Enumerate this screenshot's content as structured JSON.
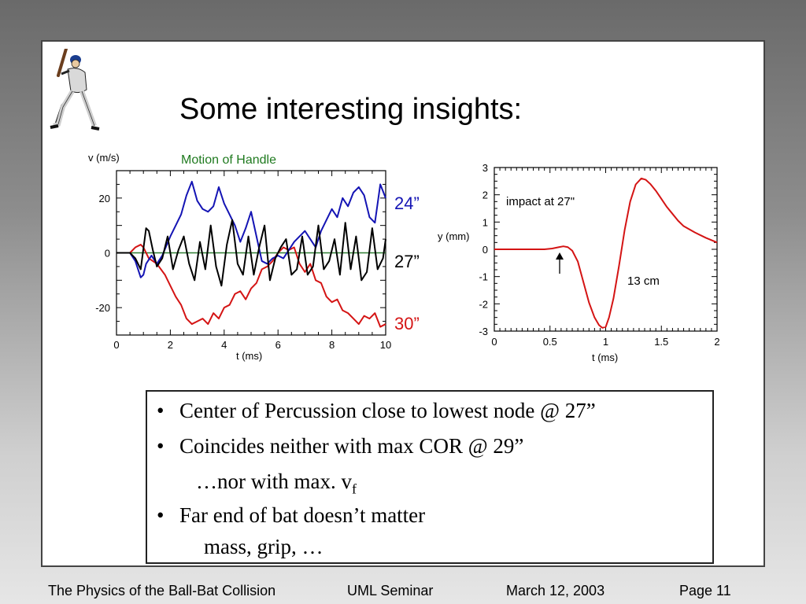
{
  "slide": {
    "title": "Some interesting insights:",
    "bullets": [
      {
        "text": "Center of Percussion close to lowest node @ 27”"
      },
      {
        "text": "Coincides neither with max COR @ 29”",
        "sub_text": "…nor with max. v",
        "sub_subscript": "f"
      },
      {
        "text": "Far end of bat doesn’t matter",
        "sub_text": "mass, grip, …"
      }
    ],
    "bullet_char": "•"
  },
  "footer": {
    "title": "The Physics of the Ball-Bat Collision",
    "event": "UML Seminar",
    "date": "March 12, 2003",
    "page": "Page 11"
  },
  "chart_data": [
    {
      "type": "line",
      "title": "Motion of Handle",
      "ylabel": "v (m/s)",
      "xlabel": "t (ms)",
      "xlim": [
        0,
        10
      ],
      "ylim": [
        -30,
        30
      ],
      "xticks": [
        "0",
        "2",
        "4",
        "6",
        "8",
        "10"
      ],
      "yticks": [
        "20",
        "0",
        "-20"
      ],
      "colors": {
        "title": "#1f7a1f",
        "zero_line": "#2e7d32"
      },
      "series": [
        {
          "name": "24”",
          "color": "#1414b4",
          "x": [
            0,
            0.5,
            0.7,
            0.9,
            1.0,
            1.1,
            1.3,
            1.5,
            1.7,
            2.0,
            2.2,
            2.4,
            2.6,
            2.8,
            3.0,
            3.2,
            3.4,
            3.6,
            3.8,
            4.0,
            4.2,
            4.4,
            4.6,
            4.8,
            5.0,
            5.2,
            5.4,
            5.6,
            5.8,
            6.0,
            6.2,
            6.4,
            6.6,
            6.8,
            7.0,
            7.2,
            7.4,
            7.6,
            7.8,
            8.0,
            8.2,
            8.4,
            8.6,
            8.8,
            9.0,
            9.2,
            9.4,
            9.6,
            9.8,
            10.0
          ],
          "y": [
            0,
            0,
            -3,
            -9,
            -8,
            -4,
            -1,
            -4,
            -1,
            6,
            10,
            14,
            21,
            26,
            19,
            16,
            15,
            17,
            24,
            18,
            14,
            10,
            4,
            9,
            15,
            6,
            -3,
            -4,
            -2,
            -1,
            -2,
            1,
            4,
            6,
            8,
            5,
            2,
            8,
            12,
            16,
            13,
            20,
            17,
            22,
            24,
            21,
            13,
            11,
            25,
            20
          ]
        },
        {
          "name": "27”",
          "color": "#000000",
          "x": [
            0,
            0.5,
            0.7,
            0.9,
            1.1,
            1.2,
            1.35,
            1.5,
            1.7,
            1.9,
            2.1,
            2.3,
            2.5,
            2.7,
            2.9,
            3.1,
            3.3,
            3.5,
            3.7,
            3.9,
            4.1,
            4.3,
            4.5,
            4.7,
            4.9,
            5.1,
            5.3,
            5.5,
            5.7,
            5.9,
            6.1,
            6.3,
            6.5,
            6.7,
            6.9,
            7.1,
            7.3,
            7.5,
            7.7,
            7.9,
            8.1,
            8.3,
            8.5,
            8.7,
            8.9,
            9.1,
            9.3,
            9.5,
            9.7,
            9.9,
            10.0
          ],
          "y": [
            0,
            0,
            -2,
            -6,
            9,
            8,
            1,
            -5,
            -2,
            6,
            -6,
            1,
            6,
            -4,
            -10,
            4,
            -6,
            10,
            -5,
            -12,
            3,
            12,
            -4,
            -8,
            6,
            -8,
            2,
            10,
            -10,
            -2,
            2,
            5,
            -8,
            -6,
            6,
            -8,
            -5,
            10,
            -6,
            -3,
            5,
            -8,
            11,
            -6,
            6,
            -10,
            -7,
            9,
            -6,
            -2,
            5
          ]
        },
        {
          "name": "30”",
          "color": "#d41414",
          "x": [
            0,
            0.5,
            0.7,
            0.9,
            1.0,
            1.2,
            1.5,
            1.8,
            2.0,
            2.2,
            2.4,
            2.6,
            2.8,
            3.0,
            3.2,
            3.4,
            3.6,
            3.8,
            4.0,
            4.2,
            4.4,
            4.6,
            4.8,
            5.0,
            5.2,
            5.4,
            5.6,
            5.8,
            6.0,
            6.2,
            6.4,
            6.6,
            6.8,
            7.0,
            7.2,
            7.4,
            7.6,
            7.8,
            8.0,
            8.2,
            8.4,
            8.6,
            8.8,
            9.0,
            9.2,
            9.4,
            9.6,
            9.8,
            10.0
          ],
          "y": [
            0,
            0,
            2,
            3,
            2,
            -2,
            -4,
            -8,
            -12,
            -16,
            -19,
            -24,
            -26,
            -25,
            -24,
            -26,
            -22,
            -24,
            -20,
            -19,
            -15,
            -14,
            -17,
            -13,
            -11,
            -6,
            -5,
            -3,
            0,
            2,
            1,
            2,
            -4,
            -7,
            -4,
            -10,
            -11,
            -16,
            -18,
            -17,
            -21,
            -22,
            -24,
            -26,
            -23,
            -24,
            -22,
            -27,
            -26
          ]
        }
      ]
    },
    {
      "type": "line",
      "xlabel": "t (ms)",
      "ylabel": "y (mm)",
      "xlim": [
        0,
        2
      ],
      "ylim": [
        -3,
        3
      ],
      "xticks": [
        "0",
        "0.5",
        "1",
        "1.5",
        "2"
      ],
      "yticks": [
        "3",
        "2",
        "1",
        "0",
        "-1",
        "-2",
        "-3"
      ],
      "annotations": [
        "impact at 27\"",
        "13 cm"
      ],
      "series": [
        {
          "color": "#d41414",
          "x": [
            0,
            0.45,
            0.52,
            0.58,
            0.62,
            0.66,
            0.7,
            0.75,
            0.8,
            0.85,
            0.9,
            0.94,
            0.97,
            1.0,
            1.03,
            1.07,
            1.12,
            1.17,
            1.22,
            1.27,
            1.32,
            1.36,
            1.4,
            1.45,
            1.5,
            1.55,
            1.6,
            1.65,
            1.7,
            1.8,
            1.9,
            2.0
          ],
          "y": [
            0,
            0,
            0.03,
            0.08,
            0.11,
            0.08,
            -0.05,
            -0.45,
            -1.2,
            -1.95,
            -2.5,
            -2.78,
            -2.88,
            -2.85,
            -2.5,
            -1.8,
            -0.6,
            0.7,
            1.75,
            2.38,
            2.6,
            2.55,
            2.4,
            2.15,
            1.85,
            1.55,
            1.3,
            1.05,
            0.85,
            0.62,
            0.42,
            0.25
          ]
        }
      ]
    }
  ]
}
